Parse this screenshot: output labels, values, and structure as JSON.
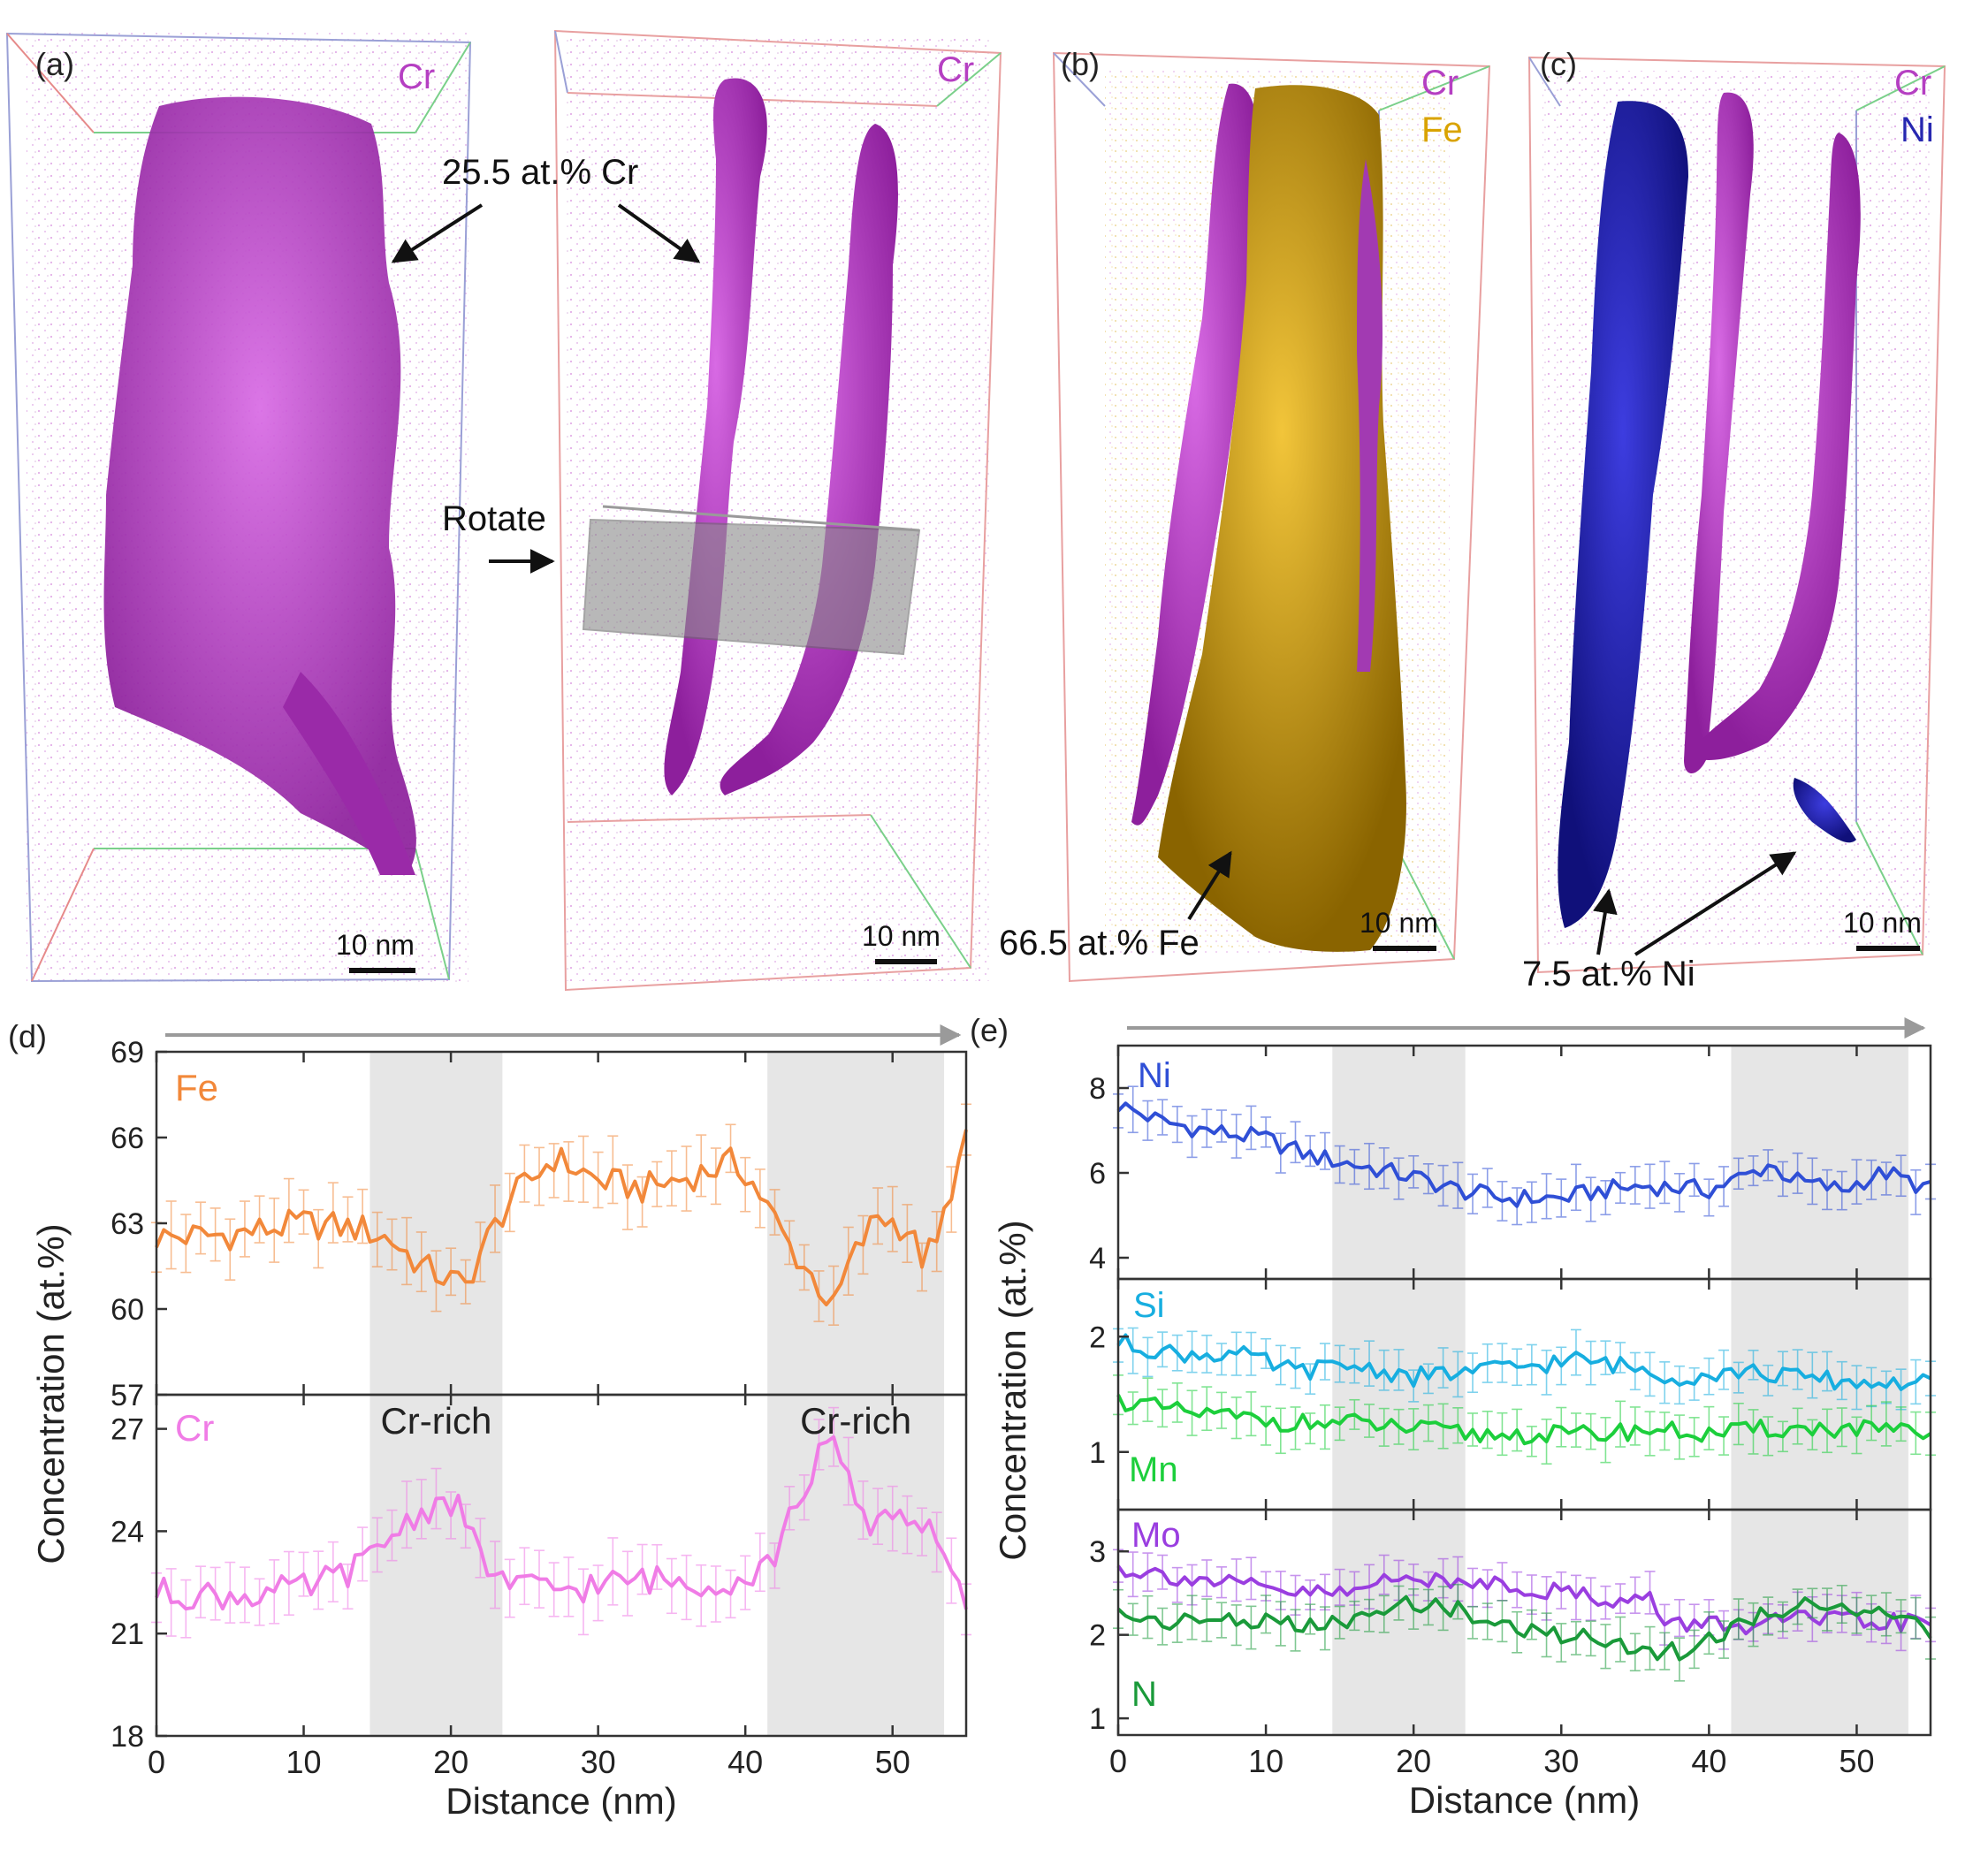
{
  "panels_3d": [
    {
      "label": "(a)",
      "legend": [
        {
          "name": "Cr",
          "color": "#b53fc2"
        }
      ],
      "annotations": [
        "25.5 at.% Cr"
      ],
      "scale_bar": "10 nm"
    },
    {
      "label": "",
      "legend": [
        {
          "name": "Cr",
          "color": "#b53fc2"
        }
      ],
      "annotations": [
        "Rotate"
      ],
      "scale_bar": "10 nm"
    },
    {
      "label": "(b)",
      "legend": [
        {
          "name": "Cr",
          "color": "#b53fc2"
        },
        {
          "name": "Fe",
          "color": "#d9a300"
        }
      ],
      "annotations": [
        "66.5 at.% Fe"
      ],
      "scale_bar": "10 nm"
    },
    {
      "label": "(c)",
      "legend": [
        {
          "name": "Cr",
          "color": "#b53fc2"
        },
        {
          "name": "Ni",
          "color": "#2727b0"
        }
      ],
      "annotations": [
        "7.5 at.% Ni"
      ],
      "scale_bar": "10 nm"
    }
  ],
  "chart_data": [
    {
      "type": "line",
      "panel_label": "(d)",
      "xlabel": "Distance (nm)",
      "ylabel": "Concentration (at.%)",
      "xlim": [
        0,
        55
      ],
      "x_ticks": [
        "0",
        "10",
        "20",
        "30",
        "40",
        "50"
      ],
      "shaded_regions": [
        [
          14.5,
          23.5
        ],
        [
          41.5,
          53.5
        ]
      ],
      "region_labels": [
        "Cr-rich",
        "Cr-rich"
      ],
      "subplots": [
        {
          "series_name": "Fe",
          "color": "#f2883a",
          "ylim": [
            57,
            69
          ],
          "y_ticks": [
            "57",
            "60",
            "63",
            "66",
            "69"
          ],
          "points": [
            [
              0,
              62.5
            ],
            [
              5,
              62.6
            ],
            [
              10,
              63.0
            ],
            [
              14,
              62.8
            ],
            [
              16,
              62.4
            ],
            [
              18,
              61.5
            ],
            [
              20,
              61.0
            ],
            [
              21,
              60.8
            ],
            [
              22,
              62.0
            ],
            [
              24,
              63.8
            ],
            [
              27,
              65.3
            ],
            [
              30,
              64.5
            ],
            [
              33,
              64.2
            ],
            [
              36,
              64.6
            ],
            [
              39,
              65.1
            ],
            [
              40,
              64.8
            ],
            [
              41,
              64.0
            ],
            [
              43,
              62.2
            ],
            [
              45,
              60.8
            ],
            [
              46,
              60.0
            ],
            [
              47,
              61.5
            ],
            [
              49,
              63.3
            ],
            [
              51,
              62.8
            ],
            [
              52,
              61.8
            ],
            [
              53,
              62.2
            ],
            [
              54,
              64.3
            ],
            [
              55,
              65.8
            ]
          ]
        },
        {
          "series_name": "Cr",
          "color": "#f07ce6",
          "ylim": [
            18,
            28
          ],
          "y_ticks": [
            "18",
            "21",
            "24",
            "27"
          ],
          "points": [
            [
              0,
              22.2
            ],
            [
              5,
              22.1
            ],
            [
              10,
              22.3
            ],
            [
              14,
              23.0
            ],
            [
              16,
              23.9
            ],
            [
              18,
              24.6
            ],
            [
              20,
              24.9
            ],
            [
              21,
              24.3
            ],
            [
              22,
              23.2
            ],
            [
              24,
              22.4
            ],
            [
              27,
              22.3
            ],
            [
              30,
              22.4
            ],
            [
              33,
              22.6
            ],
            [
              36,
              22.5
            ],
            [
              40,
              22.6
            ],
            [
              42,
              23.3
            ],
            [
              44,
              25.3
            ],
            [
              45,
              26.2
            ],
            [
              46,
              26.4
            ],
            [
              47,
              25.6
            ],
            [
              48,
              24.2
            ],
            [
              50,
              24.6
            ],
            [
              51,
              24.4
            ],
            [
              53,
              24.0
            ],
            [
              54,
              22.8
            ],
            [
              55,
              21.5
            ]
          ]
        }
      ]
    },
    {
      "type": "line",
      "panel_label": "(e)",
      "xlabel": "Distance (nm)",
      "ylabel": "Concentration (at.%)",
      "xlim": [
        0,
        55
      ],
      "x_ticks": [
        "0",
        "10",
        "20",
        "30",
        "40",
        "50"
      ],
      "shaded_regions": [
        [
          14.5,
          23.5
        ],
        [
          41.5,
          53.5
        ]
      ],
      "subplots": [
        {
          "ylim": [
            3.5,
            9
          ],
          "y_ticks": [
            "4",
            "6",
            "8"
          ],
          "series": [
            {
              "name": "Ni",
              "color": "#2f4fd6",
              "points": [
                [
                  0,
                  7.6
                ],
                [
                  3,
                  7.2
                ],
                [
                  6,
                  7.0
                ],
                [
                  10,
                  6.8
                ],
                [
                  13,
                  6.4
                ],
                [
                  16,
                  6.2
                ],
                [
                  20,
                  5.9
                ],
                [
                  23,
                  5.6
                ],
                [
                  26,
                  5.4
                ],
                [
                  30,
                  5.4
                ],
                [
                  33,
                  5.6
                ],
                [
                  36,
                  5.7
                ],
                [
                  40,
                  5.6
                ],
                [
                  43,
                  6.0
                ],
                [
                  44,
                  6.2
                ],
                [
                  46,
                  5.8
                ],
                [
                  49,
                  5.6
                ],
                [
                  51,
                  5.9
                ],
                [
                  52,
                  6.0
                ],
                [
                  55,
                  5.6
                ]
              ]
            }
          ]
        },
        {
          "ylim": [
            0.5,
            2.5
          ],
          "y_ticks": [
            "1",
            "2"
          ],
          "series": [
            {
              "name": "Si",
              "color": "#17aee0",
              "points": [
                [
                  0,
                  1.95
                ],
                [
                  4,
                  1.85
                ],
                [
                  8,
                  1.85
                ],
                [
                  12,
                  1.7
                ],
                [
                  16,
                  1.75
                ],
                [
                  20,
                  1.65
                ],
                [
                  24,
                  1.7
                ],
                [
                  28,
                  1.75
                ],
                [
                  31,
                  1.8
                ],
                [
                  34,
                  1.75
                ],
                [
                  38,
                  1.65
                ],
                [
                  42,
                  1.7
                ],
                [
                  46,
                  1.65
                ],
                [
                  50,
                  1.6
                ],
                [
                  55,
                  1.6
                ]
              ]
            },
            {
              "name": "Mn",
              "color": "#1ccf3c",
              "points": [
                [
                  0,
                  1.45
                ],
                [
                  4,
                  1.35
                ],
                [
                  8,
                  1.3
                ],
                [
                  12,
                  1.25
                ],
                [
                  16,
                  1.25
                ],
                [
                  20,
                  1.2
                ],
                [
                  24,
                  1.15
                ],
                [
                  28,
                  1.15
                ],
                [
                  32,
                  1.15
                ],
                [
                  36,
                  1.2
                ],
                [
                  40,
                  1.15
                ],
                [
                  44,
                  1.2
                ],
                [
                  48,
                  1.2
                ],
                [
                  52,
                  1.2
                ],
                [
                  55,
                  1.1
                ]
              ]
            }
          ]
        },
        {
          "ylim": [
            0.8,
            3.5
          ],
          "y_ticks": [
            "1",
            "2",
            "3"
          ],
          "series": [
            {
              "name": "Mo",
              "color": "#9a3ee0",
              "points": [
                [
                  0,
                  2.8
                ],
                [
                  4,
                  2.7
                ],
                [
                  8,
                  2.6
                ],
                [
                  12,
                  2.5
                ],
                [
                  16,
                  2.5
                ],
                [
                  19,
                  2.75
                ],
                [
                  22,
                  2.6
                ],
                [
                  25,
                  2.65
                ],
                [
                  28,
                  2.55
                ],
                [
                  31,
                  2.5
                ],
                [
                  34,
                  2.4
                ],
                [
                  36,
                  2.45
                ],
                [
                  37,
                  2.1
                ],
                [
                  40,
                  2.15
                ],
                [
                  43,
                  2.1
                ],
                [
                  46,
                  2.2
                ],
                [
                  50,
                  2.15
                ],
                [
                  55,
                  2.15
                ]
              ]
            },
            {
              "name": "N",
              "color": "#1a9a3a",
              "points": [
                [
                  0,
                  2.25
                ],
                [
                  4,
                  2.15
                ],
                [
                  8,
                  2.2
                ],
                [
                  12,
                  2.1
                ],
                [
                  16,
                  2.15
                ],
                [
                  20,
                  2.4
                ],
                [
                  23,
                  2.3
                ],
                [
                  26,
                  2.1
                ],
                [
                  30,
                  2.0
                ],
                [
                  33,
                  1.95
                ],
                [
                  36,
                  1.8
                ],
                [
                  38,
                  1.8
                ],
                [
                  40,
                  1.95
                ],
                [
                  43,
                  2.2
                ],
                [
                  46,
                  2.35
                ],
                [
                  48,
                  2.4
                ],
                [
                  50,
                  2.3
                ],
                [
                  52,
                  2.2
                ],
                [
                  55,
                  2.05
                ]
              ]
            }
          ]
        }
      ]
    }
  ]
}
